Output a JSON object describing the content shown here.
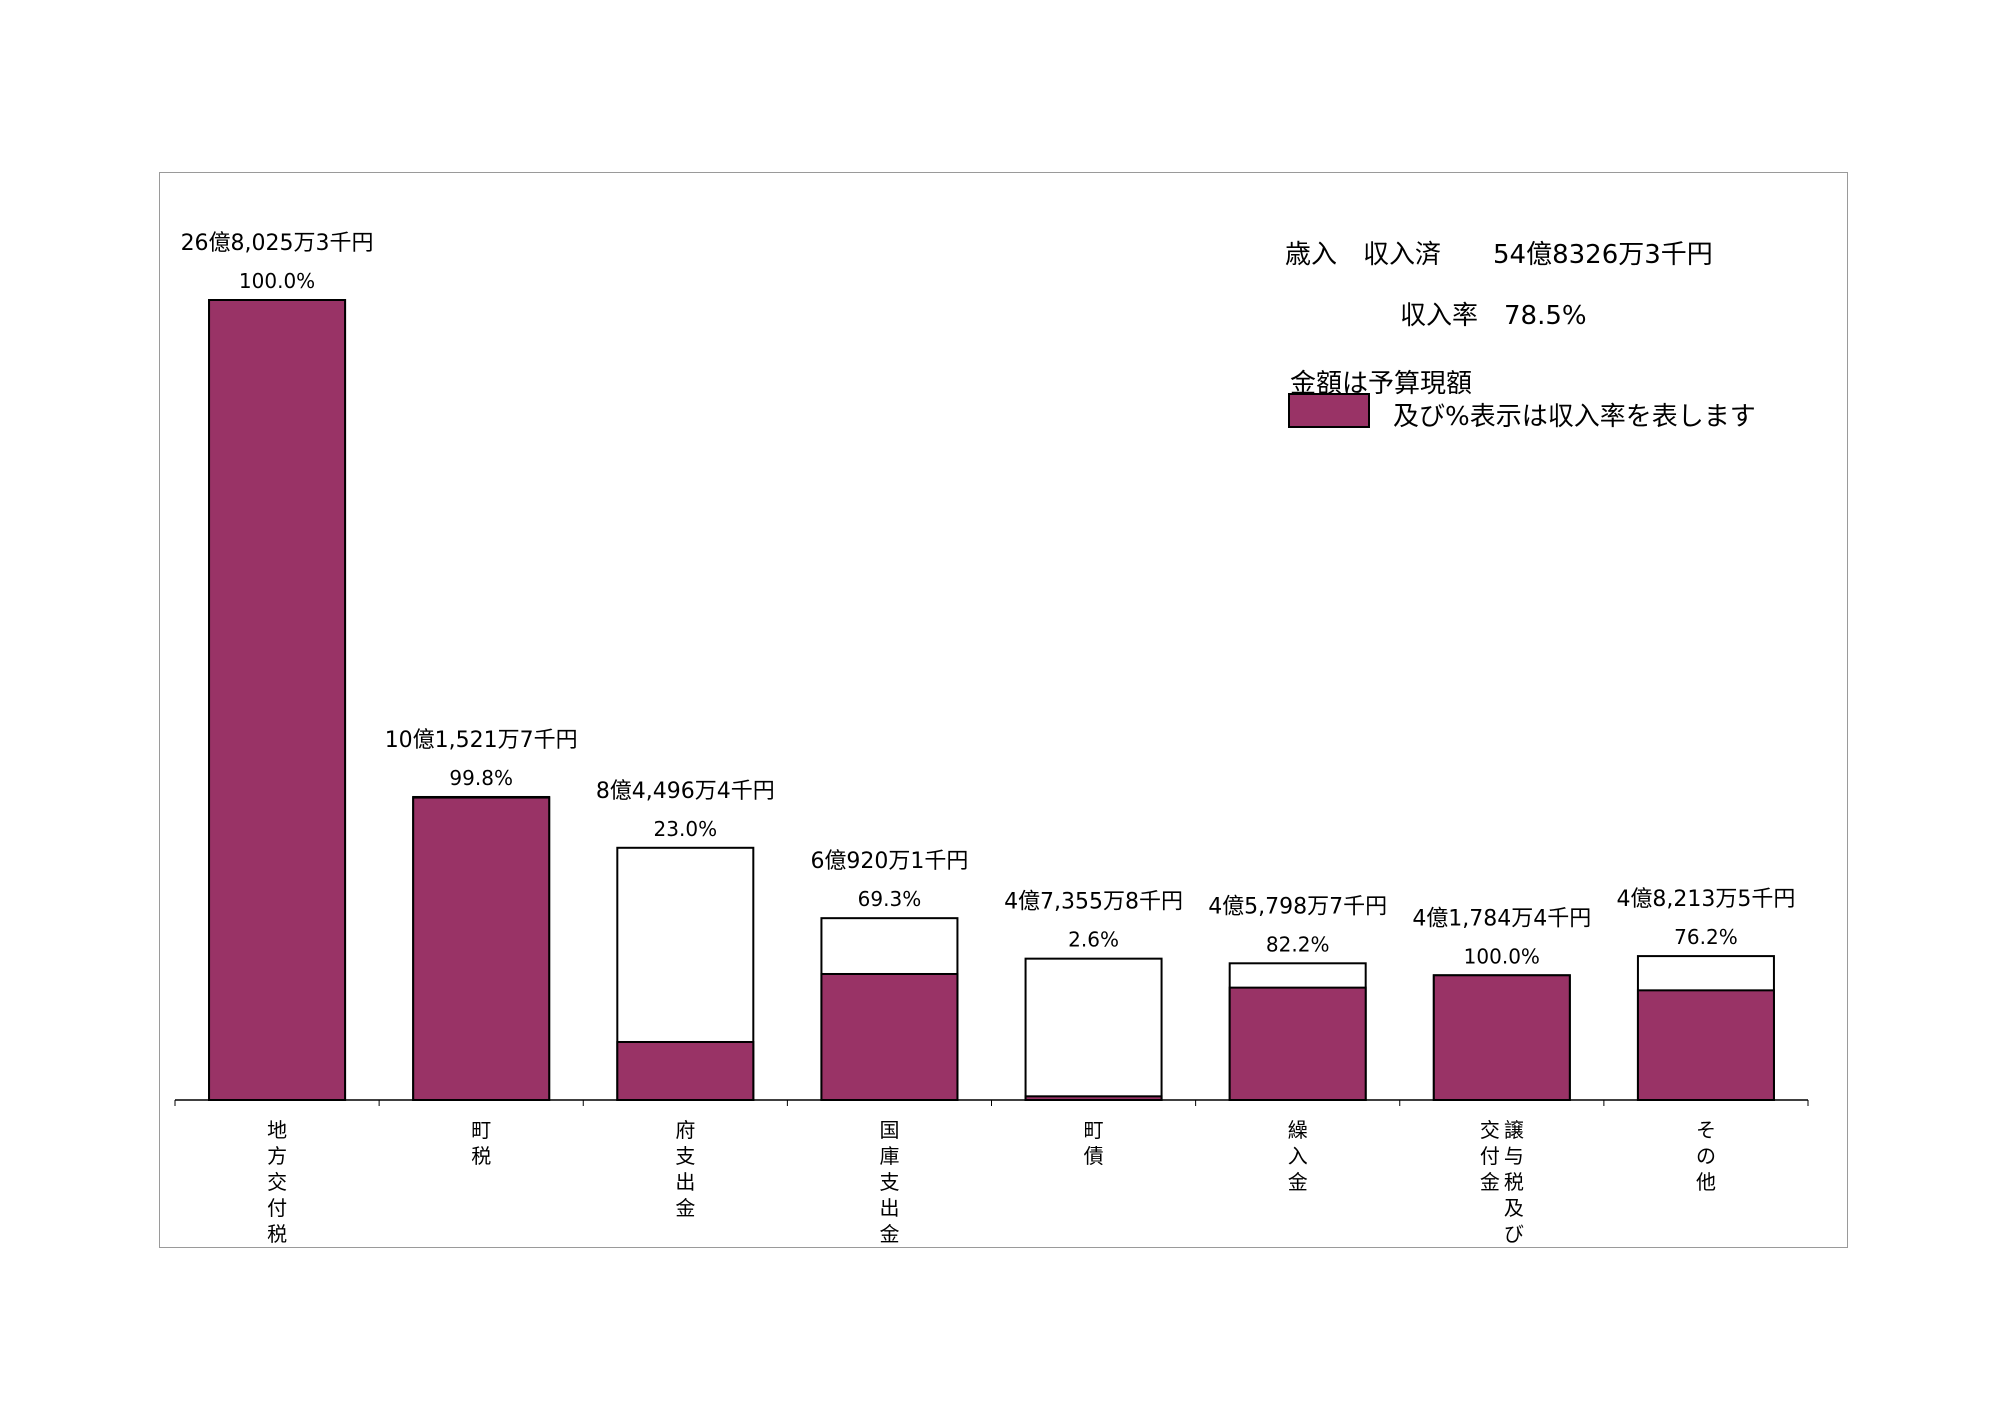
{
  "summary": {
    "line1": "歳入　収入済　　54億8326万3千円",
    "line2": "収入率　78.5%"
  },
  "legend": {
    "line1": "金額は予算現額",
    "line2": "及び%表示は収入率を表します",
    "color": "#993366"
  },
  "chart_data": {
    "type": "bar",
    "title": "",
    "xlabel": "",
    "ylabel": "",
    "unit": "千円",
    "categories": [
      "地方交付税",
      "町税",
      "府支出金",
      "国庫支出金",
      "町債",
      "繰入金",
      "譲与税及び交付金",
      "その他"
    ],
    "category_label_lines": [
      [
        "地方交付税"
      ],
      [
        "町税"
      ],
      [
        "府支出金"
      ],
      [
        "国庫支出金"
      ],
      [
        "町債"
      ],
      [
        "繰入金"
      ],
      [
        "譲与税及び",
        "交付金"
      ],
      [
        "その他"
      ]
    ],
    "budget_labels": [
      "26億8,025万3千円",
      "10億1,521万7千円",
      "8億4,496万4千円",
      "6億920万1千円",
      "4億7,355万8千円",
      "4億5,798万7千円",
      "4億1,784万4千円",
      "4億8,213万5千円"
    ],
    "rate_labels": [
      "100.0%",
      "99.8%",
      "23.0%",
      "69.3%",
      "2.6%",
      "82.2%",
      "100.0%",
      "76.2%"
    ],
    "series": [
      {
        "values": [
          2680253,
          1015217,
          844964,
          609201,
          473558,
          457987,
          417844,
          482135
        ]
      },
      {
        "values": [
          100.0,
          99.8,
          23.0,
          69.3,
          2.6,
          82.2,
          100.0,
          76.2
        ]
      }
    ],
    "colors": {
      "received": "#993366",
      "budget": "#ffffff"
    },
    "grid": false,
    "legend_position": "top-right"
  }
}
